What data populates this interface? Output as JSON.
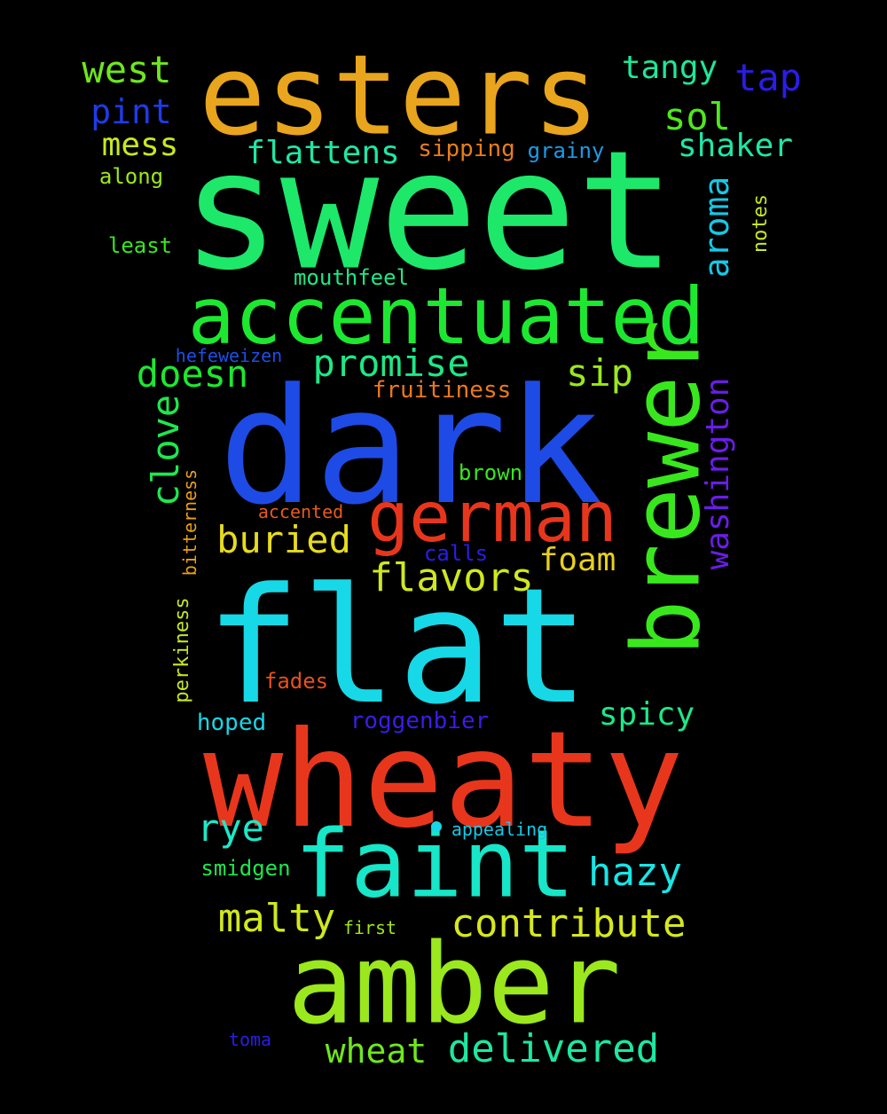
{
  "words": [
    {
      "text": "sweet",
      "color": "#1de86a",
      "vertical": false
    },
    {
      "text": "dark",
      "color": "#1e4be6",
      "vertical": false
    },
    {
      "text": "flat",
      "color": "#17d8e6",
      "vertical": false
    },
    {
      "text": "wheaty",
      "color": "#e8361d",
      "vertical": false
    },
    {
      "text": "esters",
      "color": "#e8a51d",
      "vertical": false
    },
    {
      "text": "amber",
      "color": "#9ae81d",
      "vertical": false
    },
    {
      "text": "accentuated",
      "color": "#1de830",
      "vertical": false
    },
    {
      "text": "faint",
      "color": "#17e6c8",
      "vertical": false
    },
    {
      "text": "brewer",
      "color": "#38e81d",
      "vertical": true
    },
    {
      "text": "german",
      "color": "#e8361d",
      "vertical": false
    },
    {
      "text": "delivered",
      "color": "#1de8a0",
      "vertical": false
    },
    {
      "text": "contribute",
      "color": "#d6e81d",
      "vertical": false
    },
    {
      "text": "flavors",
      "color": "#d0e81d",
      "vertical": false
    },
    {
      "text": "buried",
      "color": "#e8dc1d",
      "vertical": false
    },
    {
      "text": "promise",
      "color": "#1de886",
      "vertical": false
    },
    {
      "text": "washington",
      "color": "#6a1de8",
      "vertical": true
    },
    {
      "text": "clove",
      "color": "#1de84d",
      "vertical": true
    },
    {
      "text": "doesn",
      "color": "#1de830",
      "vertical": false
    },
    {
      "text": "malty",
      "color": "#d0e81d",
      "vertical": false
    },
    {
      "text": "hazy",
      "color": "#17e6e6",
      "vertical": false
    },
    {
      "text": "wheat",
      "color": "#6ee81d",
      "vertical": false
    },
    {
      "text": "aroma",
      "color": "#17c8e6",
      "vertical": true
    },
    {
      "text": "west",
      "color": "#6ee81d",
      "vertical": false
    },
    {
      "text": "tangy",
      "color": "#1de89a",
      "vertical": false
    },
    {
      "text": "tap",
      "color": "#2a1de8",
      "vertical": false
    },
    {
      "text": "pint",
      "color": "#1d3ce8",
      "vertical": false
    },
    {
      "text": "sol",
      "color": "#4ee81d",
      "vertical": false
    },
    {
      "text": "shaker",
      "color": "#1de8a6",
      "vertical": false
    },
    {
      "text": "flattens",
      "color": "#1de8a6",
      "vertical": false
    },
    {
      "text": "mess",
      "color": "#c8e81d",
      "vertical": false
    },
    {
      "text": "sip",
      "color": "#9ae81d",
      "vertical": false
    },
    {
      "text": "rye",
      "color": "#1de8c8",
      "vertical": false
    },
    {
      "text": "foam",
      "color": "#e8d01d",
      "vertical": false
    },
    {
      "text": "spicy",
      "color": "#1de886",
      "vertical": false
    },
    {
      "text": "fruitiness",
      "color": "#e8791d",
      "vertical": false
    },
    {
      "text": "sipping",
      "color": "#e87d1d",
      "vertical": false
    },
    {
      "text": "grainy",
      "color": "#1d9ae8",
      "vertical": false
    },
    {
      "text": "along",
      "color": "#9ae81d",
      "vertical": false
    },
    {
      "text": "least",
      "color": "#38e81d",
      "vertical": false
    },
    {
      "text": "mouthfeel",
      "color": "#1de886",
      "vertical": false
    },
    {
      "text": "notes",
      "color": "#c8e81d",
      "vertical": true
    },
    {
      "text": "hefeweizen",
      "color": "#1d4ee8",
      "vertical": false
    },
    {
      "text": "brown",
      "color": "#38e81d",
      "vertical": false
    },
    {
      "text": "bitterness",
      "color": "#e8a01d",
      "vertical": true
    },
    {
      "text": "accented",
      "color": "#e85a1d",
      "vertical": false
    },
    {
      "text": "calls",
      "color": "#2a1de8",
      "vertical": false
    },
    {
      "text": "perkiness",
      "color": "#c8e81d",
      "vertical": true
    },
    {
      "text": "fades",
      "color": "#e8501d",
      "vertical": false
    },
    {
      "text": "hoped",
      "color": "#17d8e6",
      "vertical": false
    },
    {
      "text": "roggenbier",
      "color": "#3a1de8",
      "vertical": false
    },
    {
      "text": "appealing",
      "color": "#17c8e6",
      "vertical": false
    },
    {
      "text": "smidgen",
      "color": "#1de84d",
      "vertical": false
    },
    {
      "text": "first",
      "color": "#9ae81d",
      "vertical": false
    },
    {
      "text": "toma",
      "color": "#2a1de8",
      "vertical": false
    }
  ]
}
